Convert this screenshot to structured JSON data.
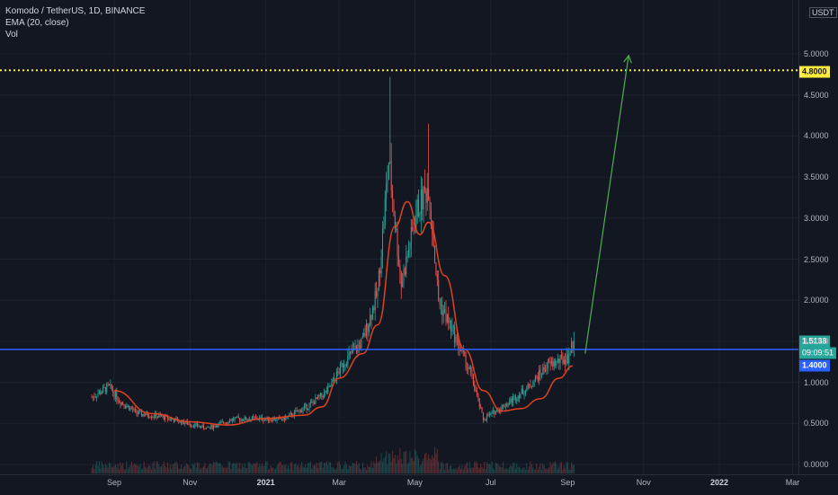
{
  "legend": {
    "symbol": "Komodo / TetherUS, 1D, BINANCE",
    "indicator": "EMA (20, close)",
    "volume": "Vol"
  },
  "currency": "USDT",
  "price_axis": {
    "ticks": [
      "5.0000",
      "4.5000",
      "4.0000",
      "3.5000",
      "3.0000",
      "2.5000",
      "2.0000",
      "1.5000",
      "1.0000",
      "0.5000",
      "0.0000"
    ]
  },
  "time_axis": {
    "ticks": [
      "Sep",
      "Nov",
      "2021",
      "Mar",
      "May",
      "Jul",
      "Sep",
      "Nov",
      "2022",
      "Mar"
    ]
  },
  "badges": {
    "target_price": "4.8000",
    "current_price": "1.5138",
    "countdown": "09:09:51",
    "support_price": "1.4000"
  },
  "colors": {
    "background": "#131722",
    "candle_up": "#26a69a",
    "candle_down": "#ef5350",
    "ema": "#e0431f",
    "support_line": "#2962ff",
    "target_line": "#ffeb3b",
    "arrow": "#4caf50"
  },
  "chart_data": {
    "type": "candlestick",
    "symbol": "Komodo / TetherUS",
    "interval": "1D",
    "exchange": "BINANCE",
    "ylim": [
      0,
      5.2
    ],
    "xlabels": [
      "Sep",
      "Nov",
      "2021",
      "Mar",
      "May",
      "Jul",
      "Sep",
      "Nov",
      "2022",
      "Mar"
    ],
    "price_path": [
      [
        "2020-08-14",
        0.82
      ],
      [
        "2020-08-28",
        0.95
      ],
      [
        "2020-09-05",
        0.78
      ],
      [
        "2020-09-20",
        0.62
      ],
      [
        "2020-10-10",
        0.58
      ],
      [
        "2020-10-25",
        0.52
      ],
      [
        "2020-11-15",
        0.44
      ],
      [
        "2020-12-05",
        0.55
      ],
      [
        "2020-12-25",
        0.56
      ],
      [
        "2021-01-15",
        0.55
      ],
      [
        "2021-02-05",
        0.72
      ],
      [
        "2021-02-20",
        0.9
      ],
      [
        "2021-03-05",
        1.25
      ],
      [
        "2021-03-20",
        1.5
      ],
      [
        "2021-04-01",
        2.1
      ],
      [
        "2021-04-10",
        3.7
      ],
      [
        "2021-04-20",
        2.2
      ],
      [
        "2021-05-03",
        3.1
      ],
      [
        "2021-05-12",
        3.4
      ],
      [
        "2021-05-20",
        2.0
      ],
      [
        "2021-06-01",
        1.6
      ],
      [
        "2021-06-15",
        1.1
      ],
      [
        "2021-06-25",
        0.55
      ],
      [
        "2021-07-15",
        0.75
      ],
      [
        "2021-08-01",
        0.95
      ],
      [
        "2021-08-15",
        1.2
      ],
      [
        "2021-09-01",
        1.3
      ],
      [
        "2021-09-06",
        1.51
      ]
    ],
    "ema_20": [
      [
        "2020-09-01",
        0.9
      ],
      [
        "2020-10-01",
        0.62
      ],
      [
        "2020-11-01",
        0.52
      ],
      [
        "2020-12-01",
        0.48
      ],
      [
        "2021-01-01",
        0.56
      ],
      [
        "2021-02-01",
        0.6
      ],
      [
        "2021-02-15",
        0.7
      ],
      [
        "2021-03-01",
        1.05
      ],
      [
        "2021-03-20",
        1.35
      ],
      [
        "2021-04-01",
        1.7
      ],
      [
        "2021-04-15",
        2.9
      ],
      [
        "2021-04-25",
        3.2
      ],
      [
        "2021-05-05",
        2.8
      ],
      [
        "2021-05-12",
        2.95
      ],
      [
        "2021-05-25",
        2.3
      ],
      [
        "2021-06-10",
        1.4
      ],
      [
        "2021-06-25",
        0.9
      ],
      [
        "2021-07-10",
        0.65
      ],
      [
        "2021-07-25",
        0.68
      ],
      [
        "2021-08-10",
        0.8
      ],
      [
        "2021-08-25",
        1.05
      ],
      [
        "2021-09-05",
        1.2
      ]
    ],
    "peak_high": 4.72,
    "horizontal_lines": [
      {
        "price": 4.8,
        "style": "dotted"
      },
      {
        "price": 1.4,
        "style": "solid"
      }
    ],
    "arrow": {
      "from": [
        "2021-09-15",
        1.35
      ],
      "to": [
        "2021-10-20",
        4.98
      ]
    },
    "current_price": 1.5138,
    "countdown": "09:09:51"
  }
}
